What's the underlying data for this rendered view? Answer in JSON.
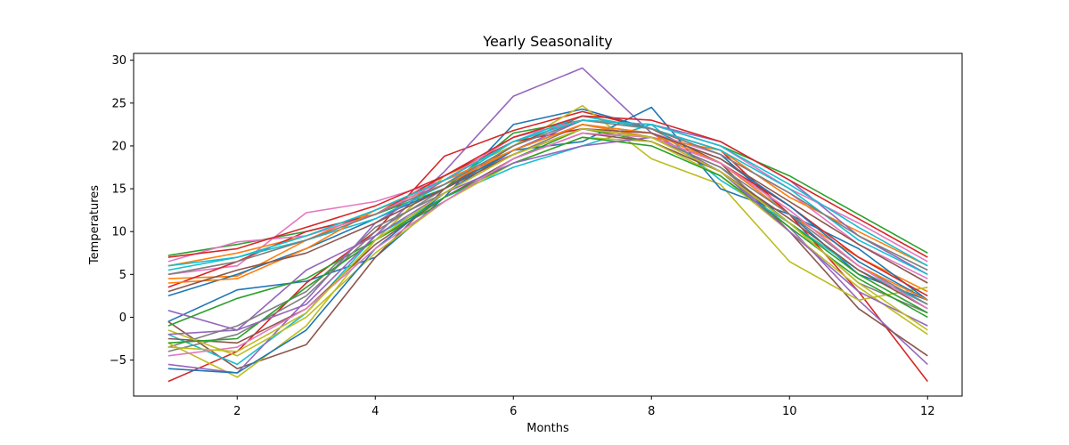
{
  "chart_data": {
    "type": "line",
    "title": "Yearly Seasonality",
    "xlabel": "Months",
    "ylabel": "Temperatures",
    "xlim": [
      0.5,
      12.5
    ],
    "ylim": [
      -9.2,
      30.8
    ],
    "xticks": [
      2,
      4,
      6,
      8,
      10,
      12
    ],
    "yticks": [
      -5,
      0,
      5,
      10,
      15,
      20,
      25,
      30
    ],
    "grid": false,
    "x": [
      1,
      2,
      3,
      4,
      5,
      6,
      7,
      8,
      9,
      10,
      11,
      12
    ],
    "palette": [
      "#1f77b4",
      "#ff7f0e",
      "#2ca02c",
      "#d62728",
      "#9467bd",
      "#8c564b",
      "#e377c2",
      "#7f7f7f",
      "#bcbd22",
      "#17becf"
    ],
    "series": [
      {
        "values": [
          -0.5,
          3.2,
          4.2,
          7.0,
          14.0,
          22.5,
          24.3,
          22.0,
          19.0,
          12.0,
          5.0,
          2.0
        ]
      },
      {
        "values": [
          4.5,
          4.8,
          9.0,
          12.5,
          15.5,
          19.0,
          22.0,
          21.0,
          18.0,
          12.0,
          7.0,
          3.0
        ]
      },
      {
        "values": [
          7.2,
          8.5,
          10.0,
          12.0,
          15.0,
          21.5,
          23.0,
          22.5,
          20.0,
          16.5,
          12.0,
          7.5
        ]
      },
      {
        "values": [
          -7.5,
          -4.0,
          4.0,
          10.0,
          18.8,
          21.8,
          24.0,
          22.0,
          19.5,
          12.0,
          3.0,
          -7.5
        ]
      },
      {
        "values": [
          0.8,
          -1.5,
          5.5,
          9.5,
          17.0,
          25.8,
          29.1,
          21.5,
          17.0,
          10.5,
          2.0,
          -5.5
        ]
      },
      {
        "values": [
          -0.5,
          -6.0,
          -3.2,
          7.0,
          15.0,
          20.0,
          23.5,
          22.0,
          18.0,
          10.0,
          1.0,
          -4.5
        ]
      },
      {
        "values": [
          5.0,
          6.0,
          12.2,
          13.5,
          16.0,
          19.0,
          22.0,
          21.5,
          19.0,
          14.5,
          8.5,
          4.5
        ]
      },
      {
        "values": [
          -3.5,
          -1.0,
          3.0,
          10.5,
          14.5,
          19.0,
          22.5,
          21.0,
          17.5,
          11.0,
          4.0,
          0.5
        ]
      },
      {
        "values": [
          -3.0,
          -7.0,
          -1.0,
          9.0,
          16.5,
          20.0,
          24.7,
          18.5,
          15.5,
          6.5,
          2.0,
          3.5
        ]
      },
      {
        "values": [
          -2.0,
          -5.5,
          0.5,
          9.5,
          14.0,
          17.5,
          20.0,
          22.5,
          16.0,
          11.0,
          5.5,
          1.5
        ]
      },
      {
        "values": [
          2.5,
          5.0,
          8.0,
          11.5,
          15.0,
          19.5,
          20.5,
          24.5,
          15.0,
          12.0,
          8.0,
          2.0
        ]
      },
      {
        "values": [
          6.0,
          7.5,
          9.5,
          12.0,
          15.5,
          19.5,
          22.5,
          21.0,
          19.5,
          14.0,
          10.0,
          6.0
        ]
      },
      {
        "values": [
          -1.0,
          2.2,
          4.5,
          9.0,
          13.5,
          18.5,
          22.0,
          20.5,
          17.0,
          11.0,
          5.0,
          0.5
        ]
      },
      {
        "values": [
          3.5,
          6.5,
          10.0,
          12.0,
          16.5,
          20.5,
          22.0,
          21.0,
          18.0,
          13.0,
          7.0,
          2.5
        ]
      },
      {
        "values": [
          -5.5,
          -6.5,
          2.0,
          11.0,
          16.0,
          19.5,
          23.0,
          22.5,
          20.5,
          16.0,
          9.5,
          5.0
        ]
      },
      {
        "values": [
          -2.5,
          -3.0,
          1.0,
          8.5,
          14.0,
          18.5,
          21.5,
          20.5,
          17.0,
          11.5,
          5.5,
          1.0
        ]
      },
      {
        "values": [
          6.5,
          8.8,
          9.5,
          12.0,
          16.0,
          21.0,
          23.0,
          22.5,
          20.0,
          15.0,
          11.0,
          6.5
        ]
      },
      {
        "values": [
          -4.0,
          -2.0,
          2.5,
          10.0,
          15.0,
          19.0,
          22.0,
          21.0,
          17.5,
          12.0,
          6.0,
          1.5
        ]
      },
      {
        "values": [
          -1.5,
          -4.5,
          0.0,
          7.5,
          13.5,
          18.0,
          21.0,
          20.5,
          16.5,
          10.0,
          3.5,
          -2.0
        ]
      },
      {
        "values": [
          5.5,
          7.0,
          9.0,
          11.5,
          15.5,
          20.5,
          23.5,
          22.0,
          19.5,
          15.0,
          9.0,
          5.0
        ]
      },
      {
        "values": [
          -6.0,
          -6.5,
          -1.5,
          8.0,
          14.5,
          19.5,
          22.5,
          21.5,
          18.5,
          13.0,
          6.5,
          2.0
        ]
      },
      {
        "values": [
          4.0,
          4.5,
          8.0,
          12.5,
          16.0,
          19.5,
          22.5,
          21.5,
          18.0,
          12.5,
          6.0,
          2.0
        ]
      },
      {
        "values": [
          -3.0,
          -2.5,
          3.5,
          9.0,
          14.0,
          18.0,
          21.0,
          20.0,
          16.5,
          10.5,
          4.5,
          0.0
        ]
      },
      {
        "values": [
          7.0,
          8.0,
          10.5,
          13.0,
          16.5,
          21.0,
          23.5,
          23.0,
          20.5,
          16.0,
          11.5,
          7.0
        ]
      },
      {
        "values": [
          -2.0,
          -1.5,
          1.5,
          9.5,
          14.5,
          18.0,
          20.0,
          21.0,
          17.0,
          10.0,
          3.0,
          -1.0
        ]
      },
      {
        "values": [
          3.0,
          5.5,
          7.5,
          11.0,
          15.0,
          19.0,
          22.0,
          21.5,
          18.5,
          13.5,
          8.5,
          4.0
        ]
      },
      {
        "values": [
          -4.5,
          -3.5,
          1.0,
          8.0,
          13.5,
          18.5,
          21.5,
          21.0,
          18.0,
          12.5,
          6.0,
          1.0
        ]
      },
      {
        "values": [
          5.0,
          6.5,
          9.0,
          12.0,
          15.5,
          20.0,
          23.0,
          22.0,
          19.0,
          14.5,
          9.5,
          5.5
        ]
      },
      {
        "values": [
          -3.5,
          -4.0,
          0.5,
          9.0,
          14.5,
          19.0,
          22.0,
          21.0,
          17.0,
          11.0,
          4.0,
          -1.5
        ]
      },
      {
        "values": [
          6.0,
          7.0,
          9.5,
          12.5,
          16.0,
          20.5,
          23.0,
          22.5,
          20.0,
          15.5,
          10.5,
          6.0
        ]
      }
    ]
  }
}
